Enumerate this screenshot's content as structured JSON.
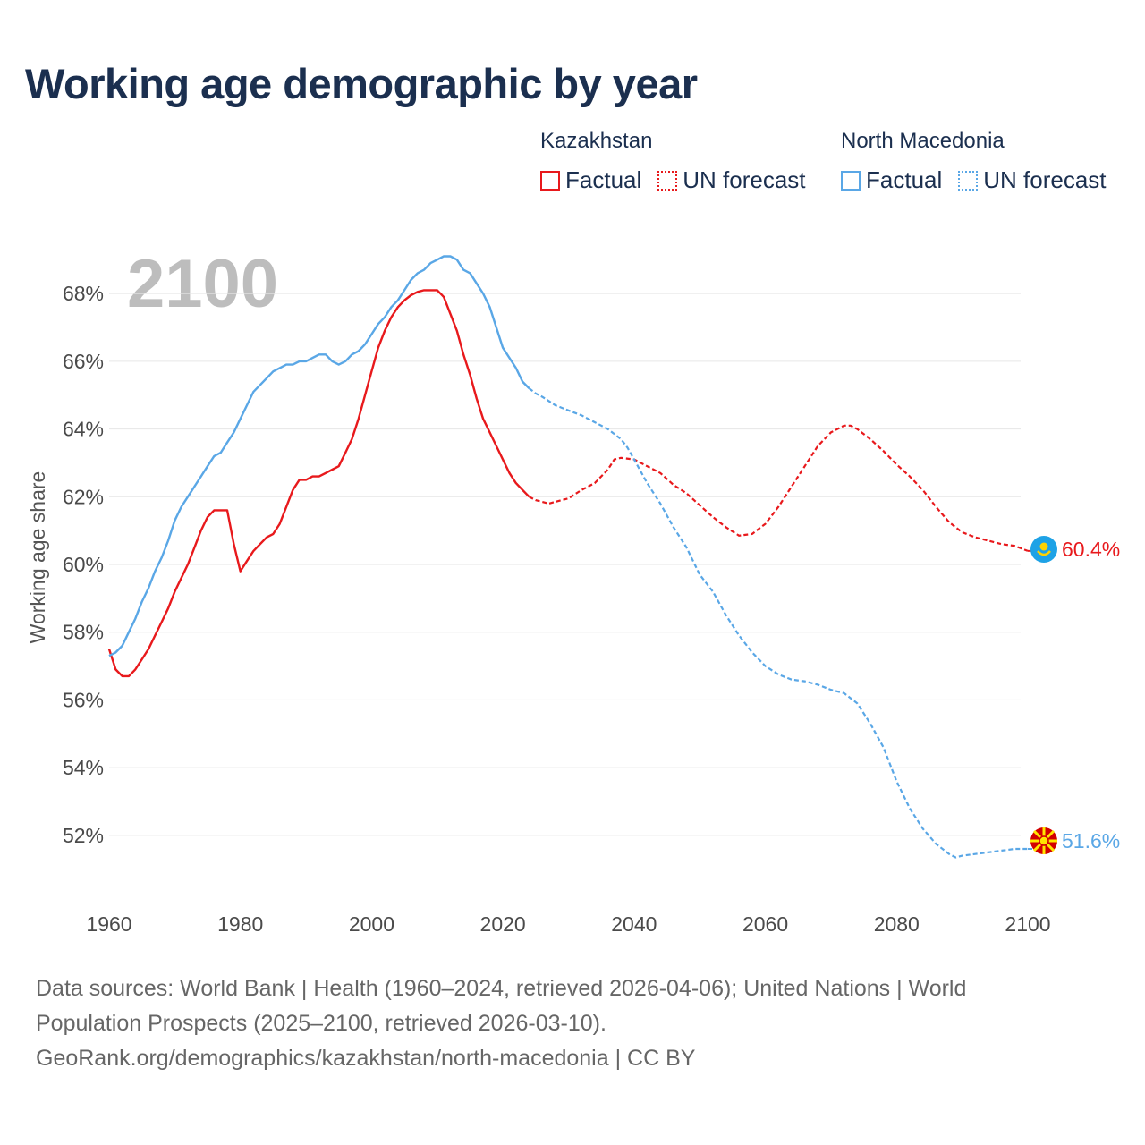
{
  "title": "Working age demographic by year",
  "year_overlay": "2100",
  "legend": {
    "groups": [
      {
        "country": "Kazakhstan",
        "factual": "Factual",
        "forecast": "UN forecast",
        "color": "#e8191c"
      },
      {
        "country": "North Macedonia",
        "factual": "Factual",
        "forecast": "UN forecast",
        "color": "#5aa7e6"
      }
    ]
  },
  "footer": {
    "line1": "Data sources: World Bank | Health (1960–2024, retrieved 2026-04-06); United Nations | World",
    "line2": "Population Prospects (2025–2100, retrieved 2026-03-10).",
    "line3": "GeoRank.org/demographics/kazakhstan/north-macedonia | CC BY"
  },
  "chart_data": {
    "type": "line",
    "title": "Working age demographic by year",
    "xlabel": "",
    "ylabel": "Working age share",
    "xlim": [
      1960,
      2103
    ],
    "ylim": [
      50.2,
      69.8
    ],
    "x_ticks": [
      1960,
      1980,
      2000,
      2020,
      2040,
      2060,
      2080,
      2100
    ],
    "y_ticks": [
      52,
      54,
      56,
      58,
      60,
      62,
      64,
      66,
      68
    ],
    "y_tick_suffix": "%",
    "grid": true,
    "factual_end_year": 2024,
    "series": [
      {
        "name": "Kazakhstan",
        "color": "#e8191c",
        "end_label": "60.4%",
        "flag": "kazakhstan-flag",
        "points": [
          [
            1960,
            57.5
          ],
          [
            1961,
            56.9
          ],
          [
            1962,
            56.7
          ],
          [
            1963,
            56.7
          ],
          [
            1964,
            56.9
          ],
          [
            1965,
            57.2
          ],
          [
            1966,
            57.5
          ],
          [
            1967,
            57.9
          ],
          [
            1968,
            58.3
          ],
          [
            1969,
            58.7
          ],
          [
            1970,
            59.2
          ],
          [
            1971,
            59.6
          ],
          [
            1972,
            60.0
          ],
          [
            1973,
            60.5
          ],
          [
            1974,
            61.0
          ],
          [
            1975,
            61.4
          ],
          [
            1976,
            61.6
          ],
          [
            1977,
            61.6
          ],
          [
            1978,
            61.6
          ],
          [
            1979,
            60.6
          ],
          [
            1980,
            59.8
          ],
          [
            1981,
            60.1
          ],
          [
            1982,
            60.4
          ],
          [
            1983,
            60.6
          ],
          [
            1984,
            60.8
          ],
          [
            1985,
            60.9
          ],
          [
            1986,
            61.2
          ],
          [
            1987,
            61.7
          ],
          [
            1988,
            62.2
          ],
          [
            1989,
            62.5
          ],
          [
            1990,
            62.5
          ],
          [
            1991,
            62.6
          ],
          [
            1992,
            62.6
          ],
          [
            1993,
            62.7
          ],
          [
            1994,
            62.8
          ],
          [
            1995,
            62.9
          ],
          [
            1996,
            63.3
          ],
          [
            1997,
            63.7
          ],
          [
            1998,
            64.3
          ],
          [
            1999,
            65.0
          ],
          [
            2000,
            65.7
          ],
          [
            2001,
            66.4
          ],
          [
            2002,
            66.9
          ],
          [
            2003,
            67.3
          ],
          [
            2004,
            67.6
          ],
          [
            2005,
            67.8
          ],
          [
            2006,
            67.95
          ],
          [
            2007,
            68.05
          ],
          [
            2008,
            68.1
          ],
          [
            2009,
            68.1
          ],
          [
            2010,
            68.1
          ],
          [
            2011,
            67.9
          ],
          [
            2012,
            67.4
          ],
          [
            2013,
            66.9
          ],
          [
            2014,
            66.2
          ],
          [
            2015,
            65.6
          ],
          [
            2016,
            64.9
          ],
          [
            2017,
            64.3
          ],
          [
            2018,
            63.9
          ],
          [
            2019,
            63.5
          ],
          [
            2020,
            63.1
          ],
          [
            2021,
            62.7
          ],
          [
            2022,
            62.4
          ],
          [
            2023,
            62.2
          ],
          [
            2024,
            62.0
          ],
          [
            2025,
            61.9
          ],
          [
            2026,
            61.85
          ],
          [
            2027,
            61.8
          ],
          [
            2028,
            61.85
          ],
          [
            2029,
            61.9
          ],
          [
            2030,
            61.95
          ],
          [
            2032,
            62.2
          ],
          [
            2034,
            62.4
          ],
          [
            2036,
            62.8
          ],
          [
            2037,
            63.1
          ],
          [
            2038,
            63.15
          ],
          [
            2040,
            63.1
          ],
          [
            2042,
            62.9
          ],
          [
            2044,
            62.7
          ],
          [
            2046,
            62.35
          ],
          [
            2048,
            62.1
          ],
          [
            2050,
            61.75
          ],
          [
            2052,
            61.4
          ],
          [
            2054,
            61.1
          ],
          [
            2056,
            60.85
          ],
          [
            2058,
            60.9
          ],
          [
            2060,
            61.2
          ],
          [
            2062,
            61.7
          ],
          [
            2064,
            62.3
          ],
          [
            2066,
            62.9
          ],
          [
            2068,
            63.5
          ],
          [
            2070,
            63.9
          ],
          [
            2072,
            64.1
          ],
          [
            2073,
            64.1
          ],
          [
            2074,
            64.0
          ],
          [
            2076,
            63.7
          ],
          [
            2078,
            63.35
          ],
          [
            2080,
            62.95
          ],
          [
            2082,
            62.6
          ],
          [
            2084,
            62.2
          ],
          [
            2086,
            61.7
          ],
          [
            2088,
            61.25
          ],
          [
            2090,
            60.95
          ],
          [
            2092,
            60.8
          ],
          [
            2094,
            60.7
          ],
          [
            2096,
            60.6
          ],
          [
            2098,
            60.55
          ],
          [
            2100,
            60.4
          ]
        ]
      },
      {
        "name": "North Macedonia",
        "color": "#5aa7e6",
        "end_label": "51.6%",
        "flag": "north-macedonia-flag",
        "points": [
          [
            1960,
            57.3
          ],
          [
            1961,
            57.4
          ],
          [
            1962,
            57.6
          ],
          [
            1963,
            58.0
          ],
          [
            1964,
            58.4
          ],
          [
            1965,
            58.9
          ],
          [
            1966,
            59.3
          ],
          [
            1967,
            59.8
          ],
          [
            1968,
            60.2
          ],
          [
            1969,
            60.7
          ],
          [
            1970,
            61.3
          ],
          [
            1971,
            61.7
          ],
          [
            1972,
            62.0
          ],
          [
            1973,
            62.3
          ],
          [
            1974,
            62.6
          ],
          [
            1975,
            62.9
          ],
          [
            1976,
            63.2
          ],
          [
            1977,
            63.3
          ],
          [
            1978,
            63.6
          ],
          [
            1979,
            63.9
          ],
          [
            1980,
            64.3
          ],
          [
            1981,
            64.7
          ],
          [
            1982,
            65.1
          ],
          [
            1983,
            65.3
          ],
          [
            1984,
            65.5
          ],
          [
            1985,
            65.7
          ],
          [
            1986,
            65.8
          ],
          [
            1987,
            65.9
          ],
          [
            1988,
            65.9
          ],
          [
            1989,
            66.0
          ],
          [
            1990,
            66.0
          ],
          [
            1991,
            66.1
          ],
          [
            1992,
            66.2
          ],
          [
            1993,
            66.2
          ],
          [
            1994,
            66.0
          ],
          [
            1995,
            65.9
          ],
          [
            1996,
            66.0
          ],
          [
            1997,
            66.2
          ],
          [
            1998,
            66.3
          ],
          [
            1999,
            66.5
          ],
          [
            2000,
            66.8
          ],
          [
            2001,
            67.1
          ],
          [
            2002,
            67.3
          ],
          [
            2003,
            67.6
          ],
          [
            2004,
            67.8
          ],
          [
            2005,
            68.1
          ],
          [
            2006,
            68.4
          ],
          [
            2007,
            68.6
          ],
          [
            2008,
            68.7
          ],
          [
            2009,
            68.9
          ],
          [
            2010,
            69.0
          ],
          [
            2011,
            69.1
          ],
          [
            2012,
            69.1
          ],
          [
            2013,
            69.0
          ],
          [
            2014,
            68.7
          ],
          [
            2015,
            68.6
          ],
          [
            2016,
            68.3
          ],
          [
            2017,
            68.0
          ],
          [
            2018,
            67.6
          ],
          [
            2019,
            67.0
          ],
          [
            2020,
            66.4
          ],
          [
            2021,
            66.1
          ],
          [
            2022,
            65.8
          ],
          [
            2023,
            65.4
          ],
          [
            2024,
            65.2
          ],
          [
            2025,
            65.05
          ],
          [
            2026,
            64.95
          ],
          [
            2028,
            64.7
          ],
          [
            2030,
            64.55
          ],
          [
            2032,
            64.4
          ],
          [
            2034,
            64.2
          ],
          [
            2036,
            64.0
          ],
          [
            2038,
            63.7
          ],
          [
            2039,
            63.45
          ],
          [
            2040,
            63.1
          ],
          [
            2042,
            62.4
          ],
          [
            2044,
            61.8
          ],
          [
            2046,
            61.1
          ],
          [
            2048,
            60.5
          ],
          [
            2050,
            59.7
          ],
          [
            2052,
            59.2
          ],
          [
            2054,
            58.5
          ],
          [
            2056,
            57.9
          ],
          [
            2058,
            57.4
          ],
          [
            2060,
            57.0
          ],
          [
            2062,
            56.75
          ],
          [
            2064,
            56.6
          ],
          [
            2066,
            56.55
          ],
          [
            2068,
            56.45
          ],
          [
            2070,
            56.3
          ],
          [
            2072,
            56.2
          ],
          [
            2074,
            55.9
          ],
          [
            2076,
            55.3
          ],
          [
            2078,
            54.6
          ],
          [
            2080,
            53.6
          ],
          [
            2082,
            52.8
          ],
          [
            2084,
            52.2
          ],
          [
            2086,
            51.75
          ],
          [
            2088,
            51.45
          ],
          [
            2089,
            51.35
          ],
          [
            2090,
            51.4
          ],
          [
            2092,
            51.45
          ],
          [
            2094,
            51.5
          ],
          [
            2096,
            51.55
          ],
          [
            2098,
            51.6
          ],
          [
            2100,
            51.6
          ]
        ]
      }
    ]
  }
}
